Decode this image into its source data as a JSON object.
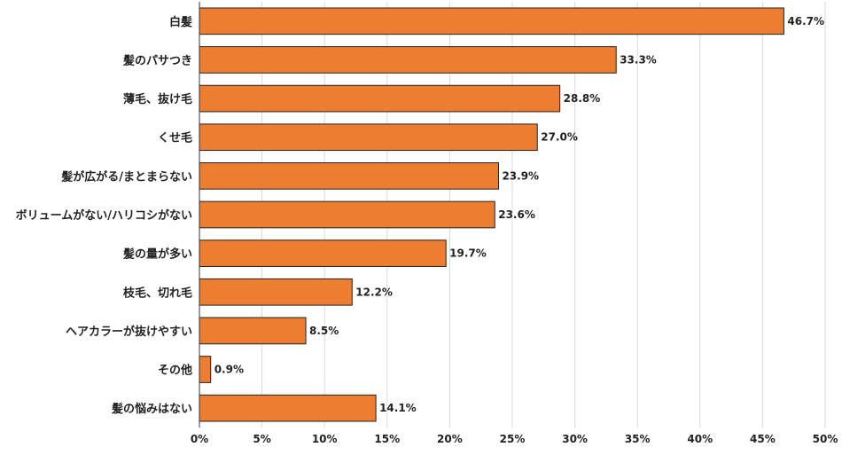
{
  "chart_data": {
    "type": "bar",
    "orientation": "horizontal",
    "categories": [
      "白髪",
      "髪のパサつき",
      "薄毛、抜け毛",
      "くせ毛",
      "髪が広がる/まとまらない",
      "ボリュームがない/ハリコシがない",
      "髪の量が多い",
      "枝毛、切れ毛",
      "ヘアカラーが抜けやすい",
      "その他",
      "髪の悩みはない"
    ],
    "values": [
      46.7,
      33.3,
      28.8,
      27.0,
      23.9,
      23.6,
      19.7,
      12.2,
      8.5,
      0.9,
      14.1
    ],
    "value_labels": [
      "46.7%",
      "33.3%",
      "28.8%",
      "27.0%",
      "23.9%",
      "23.6%",
      "19.7%",
      "12.2%",
      "8.5%",
      "0.9%",
      "14.1%"
    ],
    "xlim": [
      0,
      50
    ],
    "xticks": [
      0,
      5,
      10,
      15,
      20,
      25,
      30,
      35,
      40,
      45,
      50
    ],
    "xtick_labels": [
      "0%",
      "5%",
      "10%",
      "15%",
      "20%",
      "25%",
      "30%",
      "35%",
      "40%",
      "45%",
      "50%"
    ],
    "grid": true,
    "bar_color": "#ed7d31"
  }
}
